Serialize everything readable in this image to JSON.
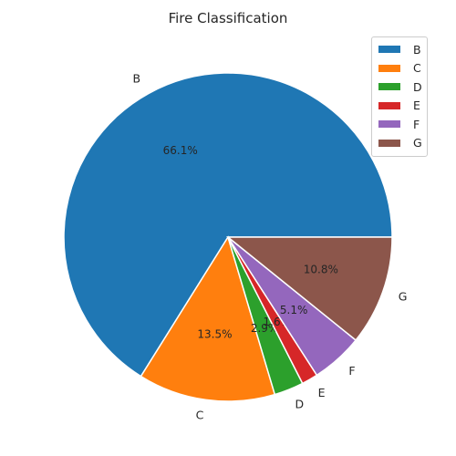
{
  "chart_data": {
    "type": "pie",
    "title": "Fire Classification",
    "categories": [
      "B",
      "C",
      "D",
      "E",
      "F",
      "G"
    ],
    "values": [
      66.1,
      13.5,
      2.9,
      1.6,
      5.1,
      10.8
    ],
    "pct_labels": [
      "66.1%",
      "13.5%",
      "2.9%",
      "1.6%",
      "5.1%",
      "10.8%"
    ],
    "colors": [
      "#1f77b4",
      "#ff7f0e",
      "#2ca02c",
      "#d62728",
      "#9467bd",
      "#8c564b"
    ],
    "start_angle_deg": 0,
    "direction": "counterclockwise",
    "legend": {
      "position": "top-right",
      "entries": [
        "B",
        "C",
        "D",
        "E",
        "F",
        "G"
      ]
    }
  }
}
